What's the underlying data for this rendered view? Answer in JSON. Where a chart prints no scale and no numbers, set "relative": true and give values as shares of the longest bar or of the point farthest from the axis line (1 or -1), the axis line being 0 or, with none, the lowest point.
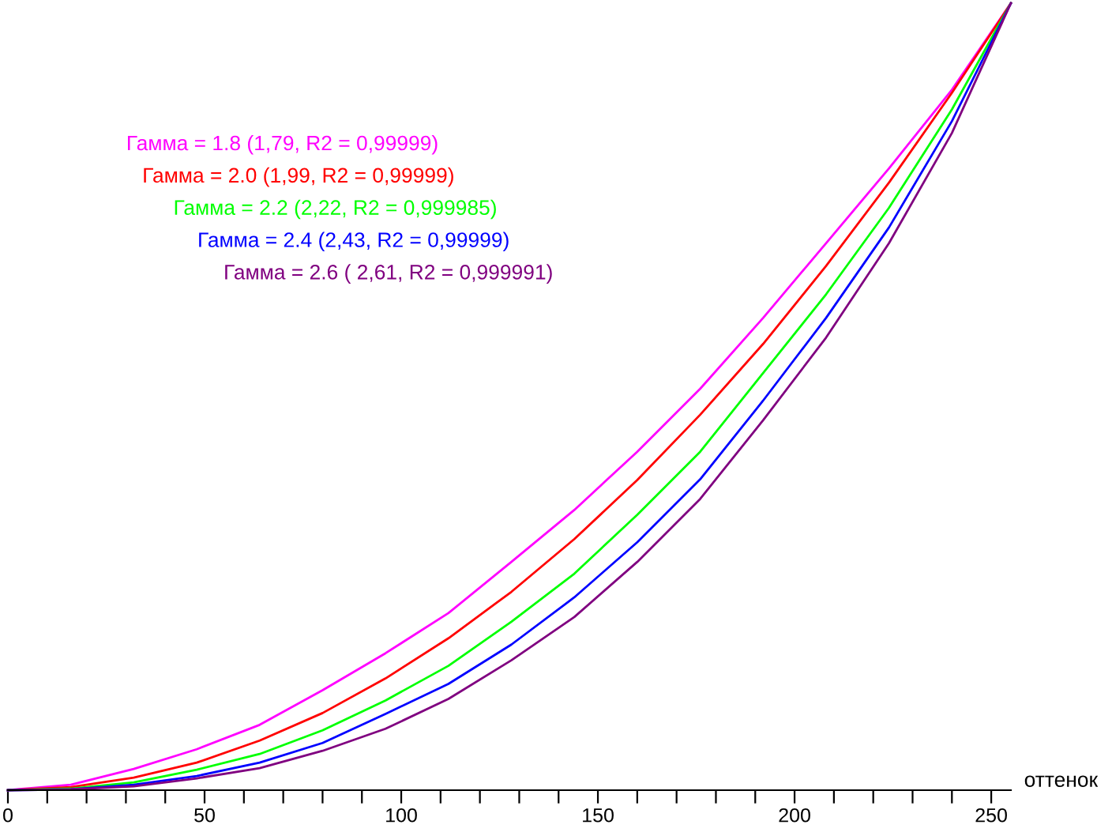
{
  "chart_data": {
    "type": "line",
    "relative": true,
    "xlabel": "оттенок",
    "legend": "top left",
    "grid": false,
    "marker": "none",
    "line_style": "solid",
    "x": [
      0,
      16,
      32,
      48,
      64,
      80,
      96,
      112,
      128,
      144,
      160,
      176,
      192,
      208,
      224,
      240,
      255
    ],
    "xlim": [
      0,
      255
    ],
    "xticks": [
      0,
      {
        "value": 10,
        "label": null
      },
      {
        "value": 20,
        "label": null
      },
      {
        "value": 30,
        "label": null
      },
      {
        "value": 40,
        "label": null
      },
      50,
      {
        "value": 60,
        "label": null
      },
      {
        "value": 70,
        "label": null
      },
      {
        "value": 80,
        "label": null
      },
      {
        "value": 90,
        "label": null
      },
      100,
      {
        "value": 110,
        "label": null
      },
      {
        "value": 120,
        "label": null
      },
      {
        "value": 130,
        "label": null
      },
      {
        "value": 140,
        "label": null
      },
      150,
      {
        "value": 160,
        "label": null
      },
      {
        "value": 170,
        "label": null
      },
      {
        "value": 180,
        "label": null
      },
      {
        "value": 190,
        "label": null
      },
      200,
      {
        "value": 210,
        "label": null
      },
      {
        "value": 220,
        "label": null
      },
      {
        "value": 230,
        "label": null
      },
      {
        "value": 240,
        "label": null
      },
      250
    ],
    "series": [
      {
        "name": "Гамма = 1.8 (1,79, R2 = 0,99999)",
        "color": "#ff00ff",
        "values": [
          0,
          0.007,
          0.027,
          0.052,
          0.083,
          0.127,
          0.174,
          0.225,
          0.29,
          0.356,
          0.43,
          0.51,
          0.6,
          0.695,
          0.79,
          0.89,
          1
        ]
      },
      {
        "name": "Гамма = 2.0 (1,99, R2 = 0,99999)",
        "color": "#ff0000",
        "values": [
          0,
          0.004,
          0.016,
          0.035,
          0.063,
          0.098,
          0.142,
          0.193,
          0.252,
          0.319,
          0.394,
          0.477,
          0.567,
          0.666,
          0.772,
          0.886,
          1
        ]
      },
      {
        "name": "Гамма = 2.2 (2,22, R2 = 0,999985)",
        "color": "#00ff00",
        "values": [
          0,
          0.002,
          0.01,
          0.026,
          0.046,
          0.076,
          0.114,
          0.158,
          0.214,
          0.275,
          0.35,
          0.43,
          0.53,
          0.63,
          0.74,
          0.865,
          1
        ]
      },
      {
        "name": "Гамма = 2.4 (2,43, R2 = 0,99999)",
        "color": "#0000ff",
        "values": [
          0,
          0.001,
          0.007,
          0.018,
          0.035,
          0.06,
          0.097,
          0.135,
          0.185,
          0.245,
          0.315,
          0.395,
          0.495,
          0.6,
          0.715,
          0.85,
          1
        ]
      },
      {
        "name": "Гамма = 2.6 ( 2,61, R2 = 0,999991)",
        "color": "#800080",
        "values": [
          0,
          0.001,
          0.005,
          0.015,
          0.028,
          0.05,
          0.078,
          0.116,
          0.165,
          0.22,
          0.29,
          0.37,
          0.47,
          0.575,
          0.695,
          0.835,
          1
        ]
      }
    ]
  }
}
